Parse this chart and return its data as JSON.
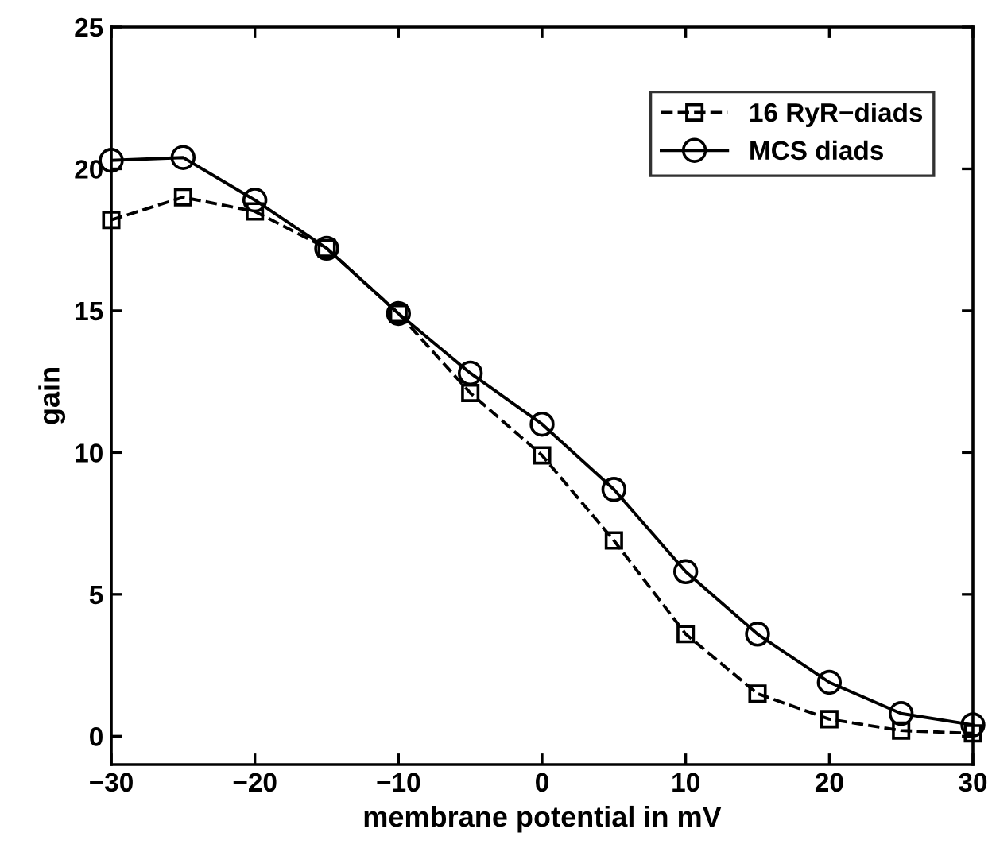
{
  "chart_data": {
    "type": "line",
    "xlabel": "membrane potential in mV",
    "ylabel": "gain",
    "x": [
      -30,
      -25,
      -20,
      -15,
      -10,
      -5,
      0,
      5,
      10,
      15,
      20,
      25,
      30
    ],
    "series": [
      {
        "name": "16 RyR−diads",
        "color": "#000000",
        "line_style": "dashed",
        "marker": "square",
        "values": [
          18.2,
          19.0,
          18.5,
          17.2,
          14.9,
          12.1,
          9.9,
          6.9,
          3.6,
          1.5,
          0.6,
          0.2,
          0.1
        ]
      },
      {
        "name": "MCS diads",
        "color": "#000000",
        "line_style": "solid",
        "marker": "circle",
        "values": [
          20.3,
          20.4,
          18.9,
          17.2,
          14.9,
          12.8,
          11.0,
          8.7,
          5.8,
          3.6,
          1.9,
          0.8,
          0.4
        ]
      }
    ],
    "xlim": [
      -30,
      30
    ],
    "xticks": [
      {
        "value": -30,
        "label": "−30"
      },
      {
        "value": -20,
        "label": "−20"
      },
      {
        "value": -10,
        "label": "−10"
      },
      0,
      10,
      20,
      30
    ],
    "ylim": [
      -1,
      25
    ],
    "yticks": [
      0,
      5,
      10,
      15,
      20,
      25
    ],
    "grid": false,
    "legend": "top right"
  }
}
